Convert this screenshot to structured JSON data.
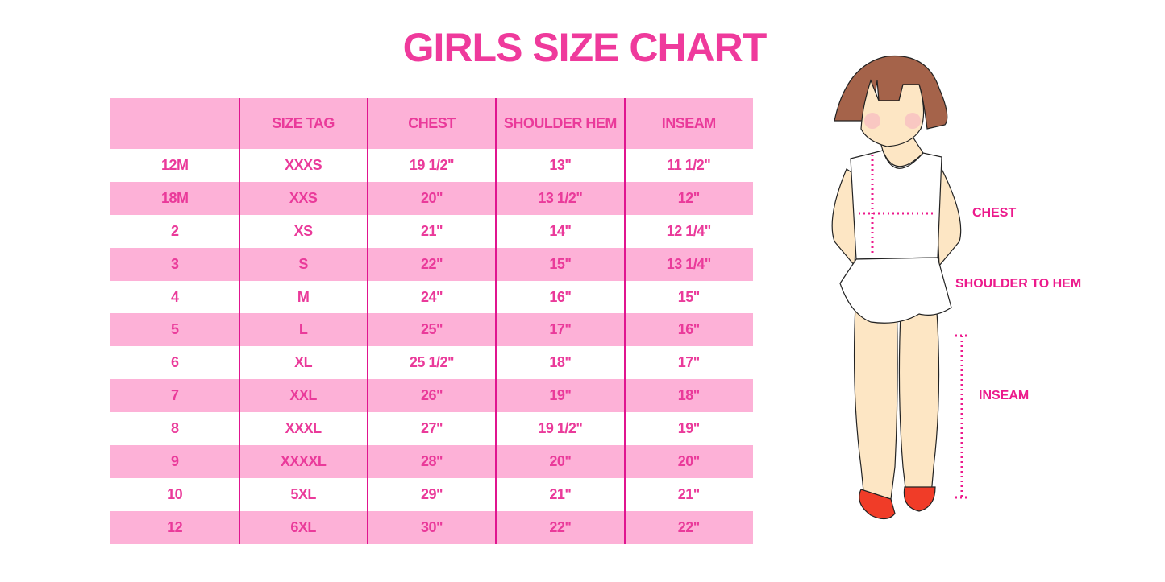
{
  "title": "GIRLS SIZE CHART",
  "table": {
    "headers": [
      "",
      "SIZE TAG",
      "CHEST",
      "SHOULDER HEM",
      "INSEAM"
    ],
    "rows": [
      [
        "12M",
        "XXXS",
        "19 1/2\"",
        "13\"",
        "11 1/2\""
      ],
      [
        "18M",
        "XXS",
        "20\"",
        "13 1/2\"",
        "12\""
      ],
      [
        "2",
        "XS",
        "21\"",
        "14\"",
        "12 1/4\""
      ],
      [
        "3",
        "S",
        "22\"",
        "15\"",
        "13 1/4\""
      ],
      [
        "4",
        "M",
        "24\"",
        "16\"",
        "15\""
      ],
      [
        "5",
        "L",
        "25\"",
        "17\"",
        "16\""
      ],
      [
        "6",
        "XL",
        "25 1/2\"",
        "18\"",
        "17\""
      ],
      [
        "7",
        "XXL",
        "26\"",
        "19\"",
        "18\""
      ],
      [
        "8",
        "XXXL",
        "27\"",
        "19 1/2\"",
        "19\""
      ],
      [
        "9",
        "XXXXL",
        "28\"",
        "20\"",
        "20\""
      ],
      [
        "10",
        "5XL",
        "29\"",
        "21\"",
        "21\""
      ],
      [
        "12",
        "6XL",
        "30\"",
        "22\"",
        "22\""
      ]
    ]
  },
  "figure": {
    "labels": {
      "chest": "CHEST",
      "shoulder": "SHOULDER TO HEM",
      "inseam": "INSEAM"
    }
  },
  "colors": {
    "accent": "#ef3a9c",
    "row_pink": "#fdb1d7",
    "divider": "#e0158f"
  }
}
